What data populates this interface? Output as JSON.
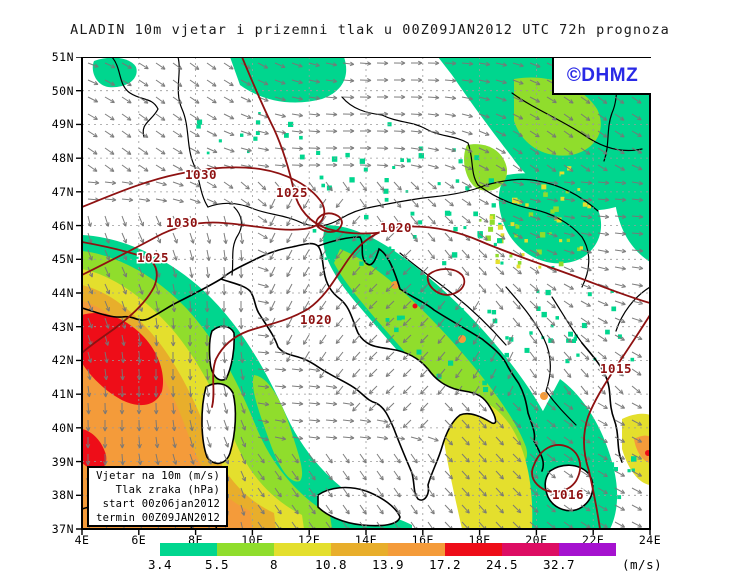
{
  "title": "ALADIN 10m vjetar i prizemni tlak u 00Z09JAN2012 UTC 72h prognoza",
  "logo": {
    "text": "©DHMZ",
    "color": "#2929e6"
  },
  "infobox": {
    "lines": [
      "Vjetar na 10m (m/s)",
      "Tlak zraka (hPa)",
      "start 00z06jan2012",
      "termin 00Z09JAN2012"
    ]
  },
  "axes": {
    "lat": [
      "51N",
      "50N",
      "49N",
      "48N",
      "47N",
      "46N",
      "45N",
      "44N",
      "43N",
      "42N",
      "41N",
      "40N",
      "39N",
      "38N",
      "37N"
    ],
    "lon": [
      "4E",
      "6E",
      "8E",
      "10E",
      "12E",
      "14E",
      "16E",
      "18E",
      "20E",
      "22E",
      "24E"
    ]
  },
  "colorbar": {
    "units": "(m/s)",
    "ticks": [
      "3.4",
      "5.5",
      "8",
      "10.8",
      "13.9",
      "17.2",
      "24.5",
      "32.7"
    ],
    "colors": [
      "#00d68e",
      "#90dd2c",
      "#e4df2d",
      "#e8ae2b",
      "#f49b3a",
      "#ee0d18",
      "#dd0d63",
      "#a512cf"
    ]
  },
  "isobars": {
    "color": "#8e1111",
    "labels": [
      "1030",
      "1025",
      "1030",
      "1025",
      "1020",
      "1020",
      "1015",
      "1016"
    ]
  },
  "map": {
    "wind_arrow_color": "#777777"
  },
  "chart_data": {
    "type": "map",
    "shaded_variable": "10m wind speed (m/s)",
    "contour_variable": "air pressure (hPa)",
    "vector_variable": "10m wind direction",
    "speed_scale_ms": [
      3.4,
      5.5,
      8,
      10.8,
      13.9,
      17.2,
      24.5,
      32.7
    ],
    "isobar_labels_hpa": [
      1030,
      1025,
      1030,
      1025,
      1020,
      1020,
      1015,
      1016
    ],
    "lat_ticks": [
      "51N",
      "50N",
      "49N",
      "48N",
      "47N",
      "46N",
      "45N",
      "44N",
      "43N",
      "42N",
      "41N",
      "40N",
      "39N",
      "38N",
      "37N"
    ],
    "lon_ticks": [
      "4E",
      "6E",
      "8E",
      "10E",
      "12E",
      "14E",
      "16E",
      "18E",
      "20E",
      "22E",
      "24E"
    ],
    "forecast_run": "start 00z06jan2012",
    "forecast_valid": "termin 00Z09JAN2012",
    "lead_time": "72h"
  }
}
